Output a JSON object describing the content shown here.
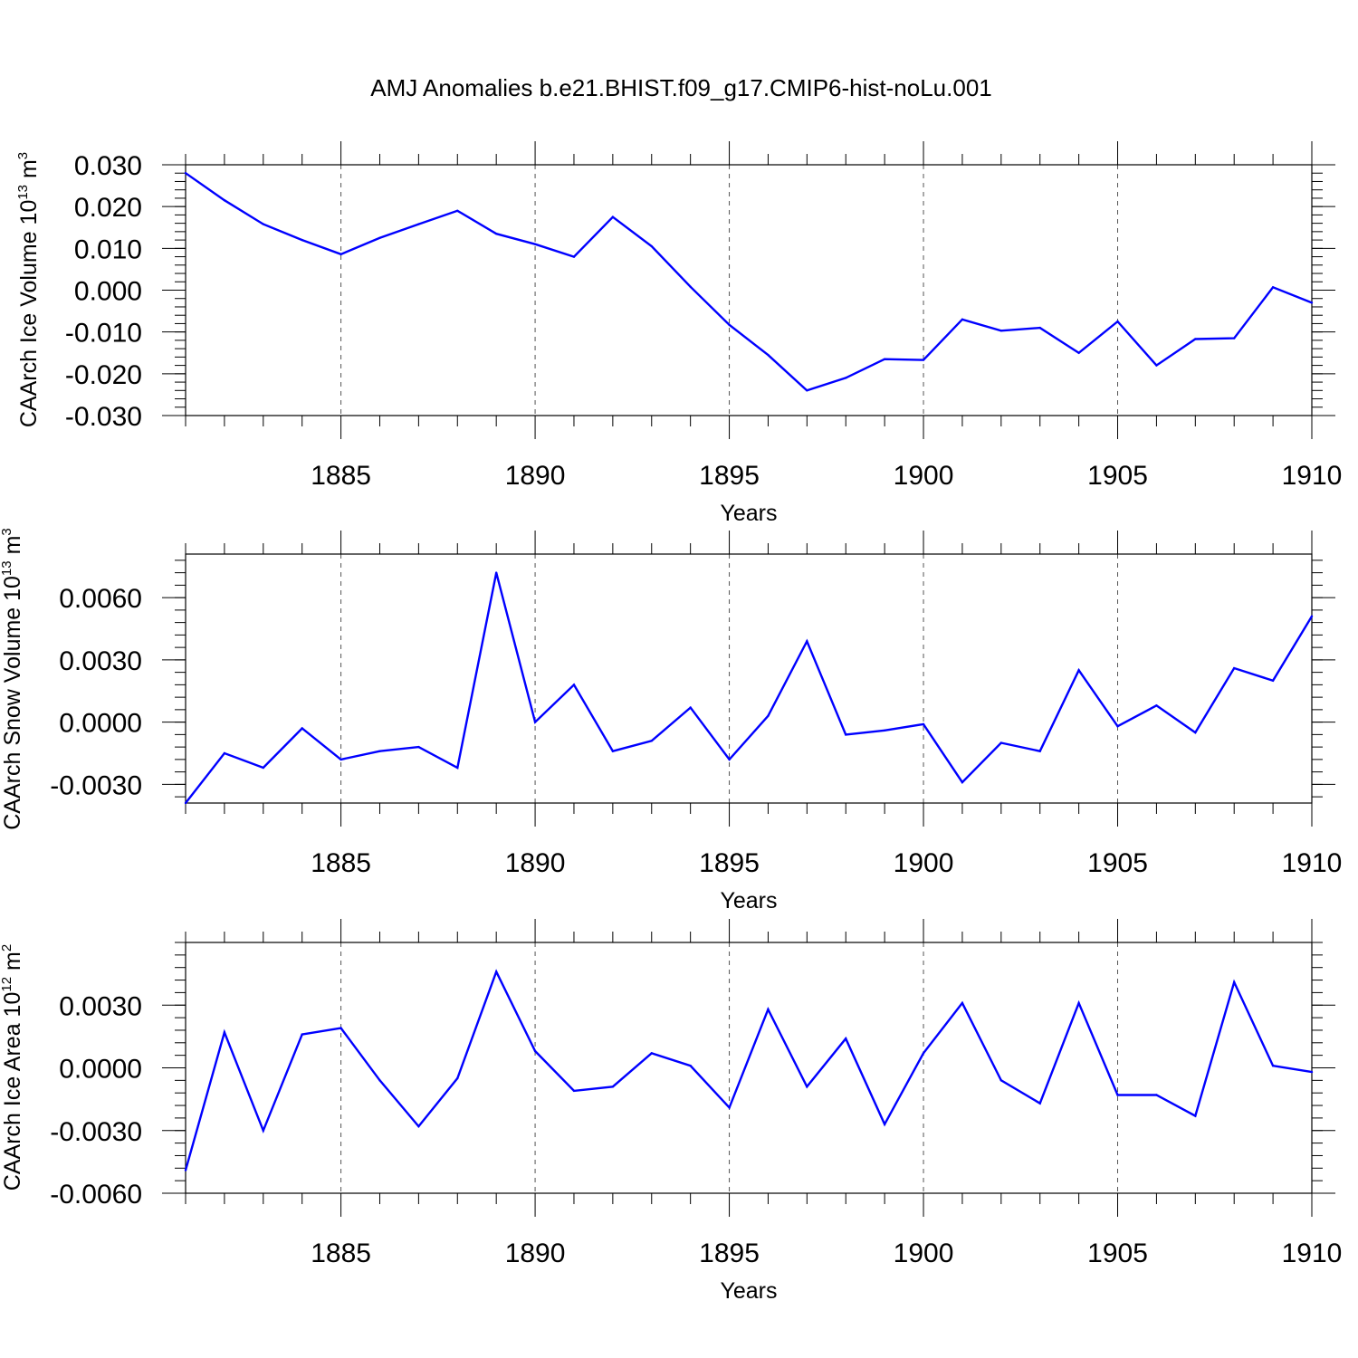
{
  "title": "AMJ Anomalies b.e21.BHIST.f09_g17.CMIP6-hist-noLu.001",
  "style": {
    "line_color": "#0000ff",
    "axis_color": "#000000",
    "grid_color": "#555555"
  },
  "chart_data": [
    {
      "type": "line",
      "xlabel": "Years",
      "ylabel": {
        "text": "CAArch Ice Volume 10",
        "exp": "13",
        "unit": " m",
        "unit_exp": "3"
      },
      "xlim": [
        1881,
        1910
      ],
      "ylim": [
        -0.03,
        0.03
      ],
      "x_ticks": [
        "1885",
        "1890",
        "1895",
        "1900",
        "1905",
        "1910"
      ],
      "y_ticks": [
        "0.030",
        "0.020",
        "0.010",
        "0.000",
        "-0.010",
        "-0.020",
        "-0.030"
      ],
      "grid": "vertical dashed at labeled x ticks",
      "x": [
        1881,
        1882,
        1883,
        1884,
        1885,
        1886,
        1887,
        1888,
        1889,
        1890,
        1891,
        1892,
        1893,
        1894,
        1895,
        1896,
        1897,
        1898,
        1899,
        1900,
        1901,
        1902,
        1903,
        1904,
        1905,
        1906,
        1907,
        1908,
        1909,
        1910
      ],
      "values": [
        0.028,
        0.0215,
        0.0158,
        0.012,
        0.0086,
        0.0125,
        0.0158,
        0.019,
        0.0135,
        0.011,
        0.008,
        0.0175,
        0.0105,
        0.0008,
        -0.0083,
        -0.0155,
        -0.024,
        -0.021,
        -0.0165,
        -0.0167,
        -0.007,
        -0.0097,
        -0.009,
        -0.015,
        -0.0075,
        -0.018,
        -0.0117,
        -0.0115,
        0.0007,
        -0.003
      ]
    },
    {
      "type": "line",
      "xlabel": "Years",
      "ylabel": {
        "text": "CAArch Snow Volume 10",
        "exp": "13",
        "unit": " m",
        "unit_exp": "3"
      },
      "xlim": [
        1881,
        1910
      ],
      "ylim": [
        -0.0039,
        0.0081
      ],
      "x_ticks": [
        "1885",
        "1890",
        "1895",
        "1900",
        "1905",
        "1910"
      ],
      "y_ticks": [
        "0.0060",
        "0.0030",
        "0.0000",
        "-0.0030"
      ],
      "grid": "vertical dashed at labeled x ticks",
      "x": [
        1881,
        1882,
        1883,
        1884,
        1885,
        1886,
        1887,
        1888,
        1889,
        1890,
        1891,
        1892,
        1893,
        1894,
        1895,
        1896,
        1897,
        1898,
        1899,
        1900,
        1901,
        1902,
        1903,
        1904,
        1905,
        1906,
        1907,
        1908,
        1909,
        1910
      ],
      "values": [
        -0.0039,
        -0.0015,
        -0.0022,
        -0.0003,
        -0.0018,
        -0.0014,
        -0.0012,
        -0.0022,
        0.0072,
        0.0,
        0.0018,
        -0.0014,
        -0.0009,
        0.0007,
        -0.0018,
        0.0003,
        0.0039,
        -0.0006,
        -0.0004,
        -0.0001,
        -0.0029,
        -0.001,
        -0.0014,
        0.0025,
        -0.0002,
        0.0008,
        -0.0005,
        0.0026,
        0.002,
        0.0051
      ]
    },
    {
      "type": "line",
      "xlabel": "Years",
      "ylabel": {
        "text": "CAArch Ice Area 10",
        "exp": "12",
        "unit": " m",
        "unit_exp": "2"
      },
      "xlim": [
        1881,
        1910
      ],
      "ylim": [
        -0.006,
        0.006
      ],
      "x_ticks": [
        "1885",
        "1890",
        "1895",
        "1900",
        "1905",
        "1910"
      ],
      "y_ticks": [
        "0.0030",
        "0.0000",
        "-0.0030",
        "-0.0060"
      ],
      "grid": "vertical dashed at labeled x ticks",
      "x": [
        1881,
        1882,
        1883,
        1884,
        1885,
        1886,
        1887,
        1888,
        1889,
        1890,
        1891,
        1892,
        1893,
        1894,
        1895,
        1896,
        1897,
        1898,
        1899,
        1900,
        1901,
        1902,
        1903,
        1904,
        1905,
        1906,
        1907,
        1908,
        1909,
        1910
      ],
      "values": [
        -0.0049,
        0.0017,
        -0.003,
        0.0016,
        0.0019,
        -0.0006,
        -0.0028,
        -0.0005,
        0.0046,
        0.0008,
        -0.0011,
        -0.0009,
        0.0007,
        0.0001,
        -0.0019,
        0.0028,
        -0.0009,
        0.0014,
        -0.0027,
        0.0007,
        0.0031,
        -0.0006,
        -0.0017,
        0.0031,
        -0.0013,
        -0.0013,
        -0.0023,
        0.0041,
        0.0001,
        -0.0002
      ]
    }
  ]
}
